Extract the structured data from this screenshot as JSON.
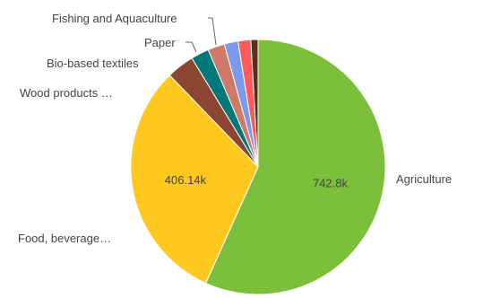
{
  "chart_data": {
    "type": "pie",
    "start_slice": "Agriculture",
    "direction": "clockwise",
    "slices": [
      {
        "label": "Agriculture",
        "value": 742.8,
        "value_label": "742.8k",
        "color": "#7cbf3b"
      },
      {
        "label": "Food, beverage…",
        "value": 406.14,
        "value_label": "406.14k",
        "color": "#ffc81f"
      },
      {
        "label": "Wood products …",
        "value": 46,
        "value_label": "",
        "color": "#8b4531"
      },
      {
        "label": "Bio-based textiles",
        "value": 30,
        "value_label": "",
        "color": "#00787a"
      },
      {
        "label": "Paper",
        "value": 28,
        "value_label": "",
        "color": "#cf7a68"
      },
      {
        "label": "Fishing and Aquaculture",
        "value": 23,
        "value_label": "",
        "color": "#7c9aea"
      },
      {
        "label": "",
        "value": 21,
        "value_label": "",
        "color": "#ff5b5b"
      },
      {
        "label": "",
        "value": 12,
        "value_label": "",
        "color": "#5a2f1e"
      }
    ]
  }
}
